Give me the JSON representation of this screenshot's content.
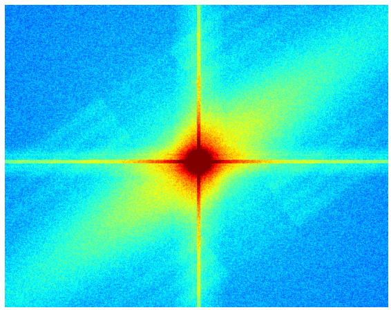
{
  "image": {
    "kind": "fourier-magnitude-spectrum",
    "colormap": "jet",
    "background_color": "#1e78e0",
    "frame_color": "#ffffff",
    "colormap_stops": [
      "#00007f",
      "#0000ff",
      "#007fff",
      "#00ffff",
      "#7fff7f",
      "#ffff00",
      "#ff7f00",
      "#ff0000",
      "#7f0000"
    ]
  }
}
